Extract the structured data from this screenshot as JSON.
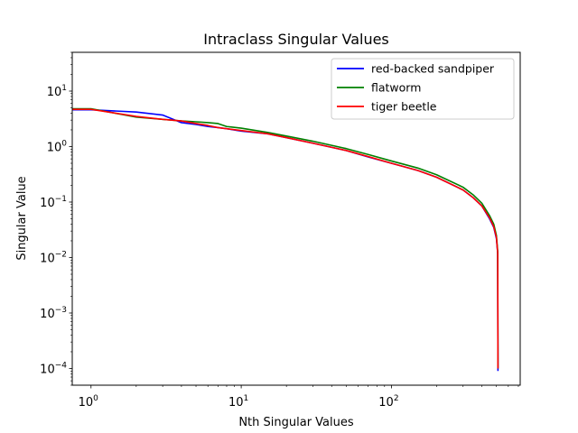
{
  "chart_data": {
    "type": "line",
    "title": "Intraclass Singular Values",
    "xlabel": "Nth Singular Values",
    "ylabel": "Singular Value",
    "xscale": "log",
    "yscale": "log",
    "xlim": [
      0.75,
      720
    ],
    "ylim": [
      5e-05,
      50
    ],
    "xticks": [
      {
        "value": 1,
        "base": "10",
        "exp": "0"
      },
      {
        "value": 10,
        "base": "10",
        "exp": "1"
      },
      {
        "value": 100,
        "base": "10",
        "exp": "2"
      }
    ],
    "yticks": [
      {
        "value": 0.0001,
        "base": "10",
        "exp": "−4"
      },
      {
        "value": 0.001,
        "base": "10",
        "exp": "−3"
      },
      {
        "value": 0.01,
        "base": "10",
        "exp": "−2"
      },
      {
        "value": 0.1,
        "base": "10",
        "exp": "−1"
      },
      {
        "value": 1,
        "base": "10",
        "exp": "0"
      },
      {
        "value": 10,
        "base": "10",
        "exp": "1"
      }
    ],
    "grid": false,
    "legend_position": "top-right",
    "series": [
      {
        "name": "red-backed sandpiper",
        "color": "#0000ff",
        "x": [
          0.75,
          1,
          2,
          3,
          4,
          5,
          6,
          7,
          8,
          10,
          15,
          20,
          30,
          50,
          70,
          100,
          150,
          200,
          300,
          350,
          400,
          450,
          480,
          500,
          510,
          511,
          512
        ],
        "y": [
          4.6,
          4.6,
          4.2,
          3.7,
          2.7,
          2.5,
          2.3,
          2.2,
          2.1,
          1.9,
          1.7,
          1.45,
          1.15,
          0.85,
          0.65,
          0.5,
          0.37,
          0.28,
          0.165,
          0.12,
          0.085,
          0.05,
          0.035,
          0.022,
          0.012,
          0.001,
          9e-05
        ]
      },
      {
        "name": "flatworm",
        "color": "#008000",
        "x": [
          0.75,
          1,
          2,
          3,
          4,
          5,
          6,
          7,
          8,
          10,
          15,
          20,
          30,
          50,
          70,
          100,
          150,
          200,
          300,
          350,
          400,
          450,
          480,
          500,
          510,
          511,
          512
        ],
        "y": [
          4.8,
          4.8,
          3.4,
          3.1,
          2.9,
          2.8,
          2.7,
          2.6,
          2.3,
          2.15,
          1.8,
          1.55,
          1.25,
          0.92,
          0.72,
          0.55,
          0.41,
          0.31,
          0.185,
          0.135,
          0.095,
          0.057,
          0.04,
          0.025,
          0.013,
          0.0012,
          0.0001
        ]
      },
      {
        "name": "tiger beetle",
        "color": "#ff0000",
        "x": [
          0.75,
          1,
          2,
          3,
          4,
          5,
          6,
          7,
          8,
          10,
          15,
          20,
          30,
          50,
          70,
          100,
          150,
          200,
          300,
          350,
          400,
          450,
          480,
          500,
          510,
          511,
          512
        ],
        "y": [
          4.7,
          4.7,
          3.5,
          3.1,
          2.9,
          2.6,
          2.4,
          2.2,
          2.1,
          1.95,
          1.7,
          1.45,
          1.15,
          0.85,
          0.66,
          0.5,
          0.37,
          0.28,
          0.165,
          0.12,
          0.085,
          0.052,
          0.036,
          0.023,
          0.012,
          0.0011,
          0.0001
        ]
      }
    ]
  }
}
